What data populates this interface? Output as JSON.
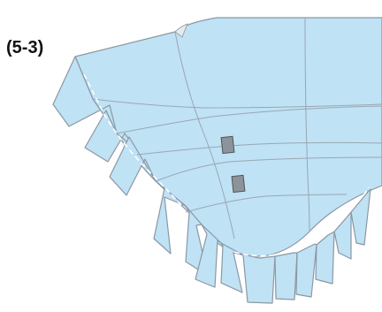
{
  "figure": {
    "label": "(5-3)"
  },
  "colors": {
    "fill": "#bfe2f5",
    "outline": "#8c97a3",
    "grid": "#9aa6b2",
    "block_fill": "#8d939a",
    "block_stroke": "#4f555b",
    "seam": "#ffffff",
    "notch": "#e6eaee"
  }
}
